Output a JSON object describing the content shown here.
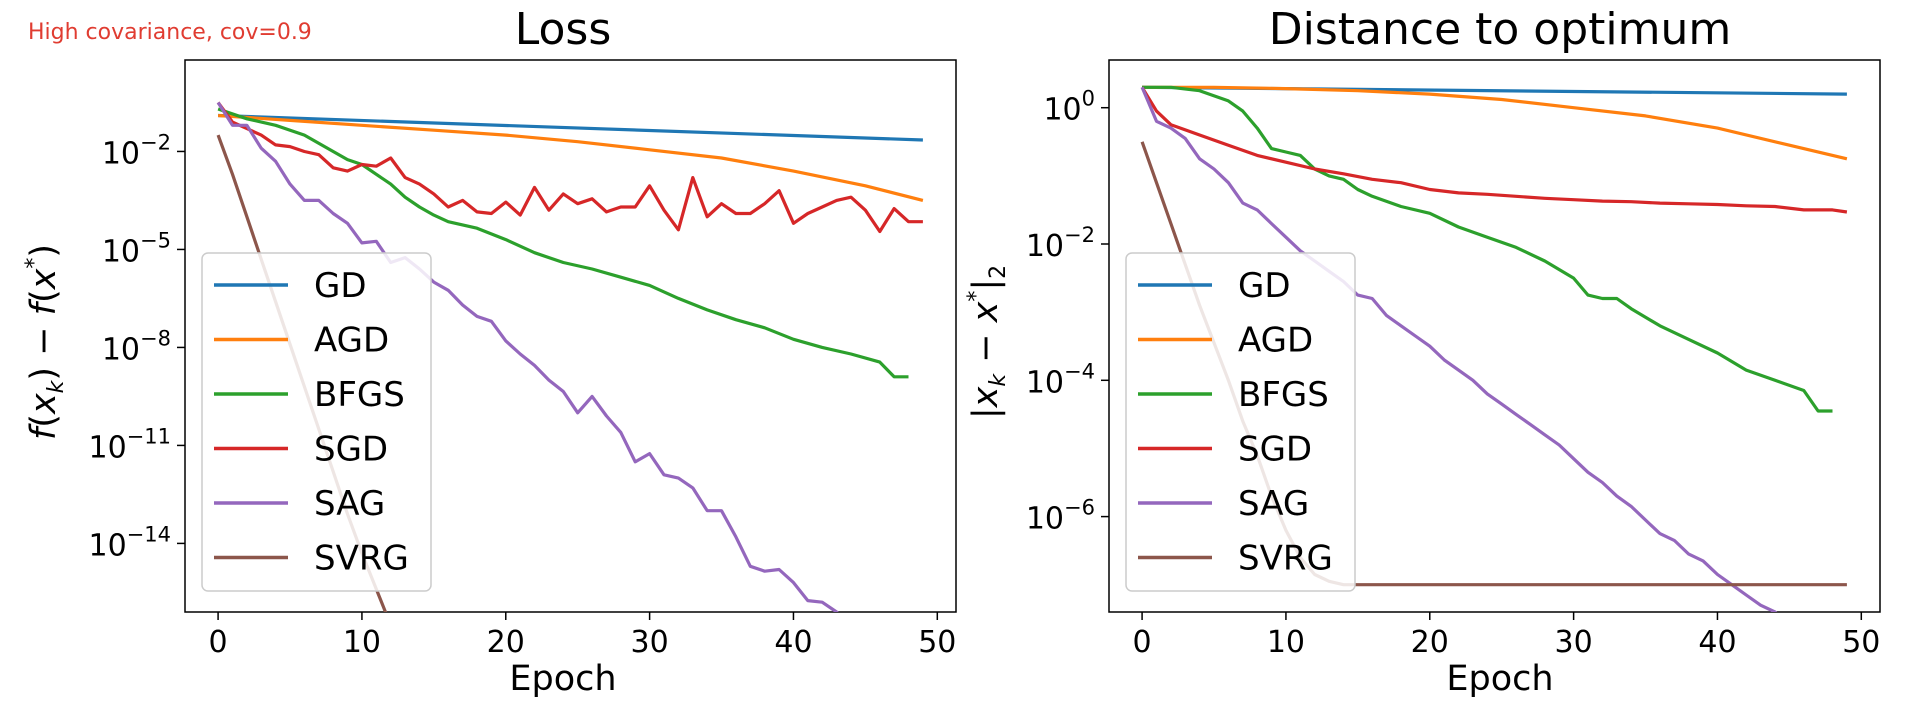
{
  "annotation": "High covariance, cov=0.9",
  "colors": {
    "GD": "#1f77b4",
    "AGD": "#ff7f0e",
    "BFGS": "#2ca02c",
    "SGD": "#d62728",
    "SAG": "#9467bd",
    "SVRG": "#8c564b",
    "annotation": "#e03c31"
  },
  "chart_data": [
    {
      "type": "line",
      "title": "Loss",
      "xlabel": "Epoch",
      "ylabel": "f(x_k) − f(x*)",
      "yscale": "log",
      "xlim": [
        -2.3,
        51.3
      ],
      "ylim_log10": [
        -16.1,
        0.8
      ],
      "xticks": [
        0,
        10,
        20,
        30,
        40,
        50
      ],
      "yticks_exp": [
        -2,
        -5,
        -8,
        -11,
        -14
      ],
      "legend": [
        "GD",
        "AGD",
        "BFGS",
        "SGD",
        "SAG",
        "SVRG"
      ],
      "legend_loc": "lower-left",
      "grid": false,
      "series": [
        {
          "name": "GD",
          "x": [
            0,
            49
          ],
          "log10y": [
            -0.9,
            -1.65
          ]
        },
        {
          "name": "AGD",
          "x": [
            0,
            5,
            10,
            15,
            20,
            25,
            30,
            35,
            40,
            45,
            49
          ],
          "log10y": [
            -0.9,
            -1.05,
            -1.2,
            -1.35,
            -1.5,
            -1.7,
            -1.95,
            -2.2,
            -2.6,
            -3.05,
            -3.5
          ]
        },
        {
          "name": "BFGS",
          "x": [
            0,
            2,
            4,
            6,
            8,
            9,
            10,
            11,
            12,
            13,
            14,
            15,
            16,
            18,
            20,
            22,
            24,
            26,
            28,
            30,
            32,
            34,
            36,
            38,
            40,
            42,
            44,
            46,
            47,
            48
          ],
          "log10y": [
            -0.7,
            -1.0,
            -1.2,
            -1.5,
            -2.0,
            -2.25,
            -2.4,
            -2.7,
            -3.0,
            -3.4,
            -3.7,
            -3.95,
            -4.15,
            -4.35,
            -4.7,
            -5.1,
            -5.4,
            -5.6,
            -5.85,
            -6.1,
            -6.5,
            -6.85,
            -7.15,
            -7.4,
            -7.75,
            -8.0,
            -8.2,
            -8.45,
            -8.9,
            -8.9
          ]
        },
        {
          "name": "SGD",
          "x": [
            0,
            1,
            2,
            3,
            4,
            5,
            6,
            7,
            8,
            9,
            10,
            11,
            12,
            13,
            14,
            15,
            16,
            17,
            18,
            19,
            20,
            21,
            22,
            23,
            24,
            25,
            26,
            27,
            28,
            29,
            30,
            31,
            32,
            33,
            34,
            35,
            36,
            37,
            38,
            39,
            40,
            41,
            42,
            43,
            44,
            45,
            46,
            47,
            48,
            49
          ],
          "log10y": [
            -0.5,
            -1.1,
            -1.3,
            -1.5,
            -1.8,
            -1.85,
            -2.0,
            -2.1,
            -2.5,
            -2.6,
            -2.4,
            -2.45,
            -2.2,
            -2.8,
            -3.0,
            -3.3,
            -3.7,
            -3.5,
            -3.85,
            -3.9,
            -3.55,
            -3.95,
            -3.1,
            -3.8,
            -3.3,
            -3.6,
            -3.45,
            -3.85,
            -3.7,
            -3.7,
            -3.05,
            -3.8,
            -4.4,
            -2.8,
            -4.0,
            -3.6,
            -3.9,
            -3.9,
            -3.6,
            -3.2,
            -4.2,
            -3.9,
            -3.7,
            -3.5,
            -3.4,
            -3.8,
            -4.45,
            -3.75,
            -4.15,
            -4.15
          ]
        },
        {
          "name": "SAG",
          "x": [
            0,
            1,
            2,
            3,
            4,
            5,
            6,
            7,
            8,
            9,
            10,
            11,
            12,
            13,
            14,
            15,
            16,
            17,
            18,
            19,
            20,
            21,
            22,
            23,
            24,
            25,
            26,
            27,
            28,
            29,
            30,
            31,
            32,
            33,
            34,
            35,
            36,
            37,
            38,
            39,
            40,
            41,
            42,
            43,
            44,
            45,
            46,
            47,
            48,
            49
          ],
          "log10y": [
            -0.5,
            -1.2,
            -1.2,
            -1.9,
            -2.3,
            -3.0,
            -3.5,
            -3.5,
            -3.9,
            -4.2,
            -4.8,
            -4.75,
            -5.4,
            -5.25,
            -5.6,
            -6.0,
            -6.25,
            -6.7,
            -7.05,
            -7.2,
            -7.8,
            -8.2,
            -8.55,
            -9.0,
            -9.35,
            -10.0,
            -9.5,
            -10.1,
            -10.6,
            -11.5,
            -11.25,
            -11.9,
            -12.0,
            -12.3,
            -13.0,
            -13.0,
            -13.8,
            -14.7,
            -14.85,
            -14.8,
            -15.2,
            -15.75,
            -15.8,
            -16.1,
            -16.6,
            -16.45,
            -17.25,
            -17.35,
            -17.65,
            -18.0
          ]
        },
        {
          "name": "SVRG",
          "x": [
            0,
            1,
            2,
            3,
            4,
            5,
            6,
            7,
            8,
            9,
            10,
            11,
            12
          ],
          "log10y": [
            -1.5,
            -2.7,
            -4.0,
            -5.3,
            -6.6,
            -7.9,
            -9.2,
            -10.5,
            -11.8,
            -13.1,
            -14.3,
            -15.4,
            -16.5
          ]
        }
      ]
    },
    {
      "type": "line",
      "title": "Distance to optimum",
      "xlabel": "Epoch",
      "ylabel": "|x_k − x*|_2",
      "yscale": "log",
      "xlim": [
        -2.3,
        51.3
      ],
      "ylim_log10": [
        -7.4,
        0.7
      ],
      "xticks": [
        0,
        10,
        20,
        30,
        40,
        50
      ],
      "yticks_exp": [
        0,
        -2,
        -4,
        -6
      ],
      "legend": [
        "GD",
        "AGD",
        "BFGS",
        "SGD",
        "SAG",
        "SVRG"
      ],
      "legend_loc": "lower-left",
      "grid": false,
      "series": [
        {
          "name": "GD",
          "x": [
            0,
            49
          ],
          "log10y": [
            0.3,
            0.2
          ]
        },
        {
          "name": "AGD",
          "x": [
            0,
            5,
            10,
            15,
            20,
            25,
            30,
            35,
            40,
            45,
            49
          ],
          "log10y": [
            0.3,
            0.3,
            0.28,
            0.25,
            0.2,
            0.12,
            0.0,
            -0.12,
            -0.3,
            -0.55,
            -0.75
          ]
        },
        {
          "name": "BFGS",
          "x": [
            0,
            2,
            4,
            6,
            7,
            8,
            9,
            10,
            11,
            12,
            13,
            14,
            15,
            16,
            18,
            20,
            22,
            24,
            26,
            28,
            30,
            31,
            32,
            33,
            34,
            36,
            38,
            40,
            42,
            44,
            46,
            47,
            48
          ],
          "log10y": [
            0.3,
            0.3,
            0.25,
            0.1,
            -0.05,
            -0.3,
            -0.6,
            -0.65,
            -0.7,
            -0.9,
            -1.0,
            -1.05,
            -1.2,
            -1.3,
            -1.45,
            -1.55,
            -1.75,
            -1.9,
            -2.05,
            -2.25,
            -2.5,
            -2.75,
            -2.8,
            -2.8,
            -2.95,
            -3.2,
            -3.4,
            -3.6,
            -3.85,
            -4.0,
            -4.15,
            -4.45,
            -4.45
          ]
        },
        {
          "name": "SGD",
          "x": [
            0,
            1,
            2,
            4,
            6,
            8,
            10,
            12,
            14,
            16,
            18,
            20,
            22,
            24,
            26,
            28,
            30,
            32,
            34,
            36,
            38,
            40,
            42,
            44,
            46,
            48,
            49
          ],
          "log10y": [
            0.3,
            -0.05,
            -0.25,
            -0.4,
            -0.55,
            -0.7,
            -0.8,
            -0.9,
            -0.97,
            -1.05,
            -1.1,
            -1.2,
            -1.25,
            -1.27,
            -1.3,
            -1.33,
            -1.35,
            -1.37,
            -1.38,
            -1.4,
            -1.41,
            -1.42,
            -1.44,
            -1.45,
            -1.5,
            -1.5,
            -1.53
          ]
        },
        {
          "name": "SAG",
          "x": [
            0,
            1,
            2,
            3,
            4,
            5,
            6,
            7,
            8,
            9,
            10,
            11,
            12,
            13,
            14,
            15,
            16,
            17,
            18,
            19,
            20,
            21,
            22,
            23,
            24,
            25,
            26,
            27,
            28,
            29,
            30,
            31,
            32,
            33,
            34,
            35,
            36,
            37,
            38,
            39,
            40,
            41,
            42,
            43,
            44,
            45,
            46,
            47,
            48,
            49
          ],
          "log10y": [
            0.3,
            -0.2,
            -0.3,
            -0.45,
            -0.75,
            -0.9,
            -1.1,
            -1.4,
            -1.5,
            -1.7,
            -1.9,
            -2.1,
            -2.25,
            -2.4,
            -2.55,
            -2.75,
            -2.8,
            -3.05,
            -3.2,
            -3.35,
            -3.5,
            -3.7,
            -3.85,
            -4.0,
            -4.2,
            -4.35,
            -4.5,
            -4.65,
            -4.8,
            -4.95,
            -5.15,
            -5.35,
            -5.5,
            -5.7,
            -5.85,
            -6.05,
            -6.25,
            -6.35,
            -6.55,
            -6.65,
            -6.85,
            -7.0,
            -7.15,
            -7.3,
            -7.4,
            -7.6,
            -7.75,
            -7.9,
            -8.0,
            -8.1
          ]
        },
        {
          "name": "SVRG",
          "x": [
            0,
            1,
            2,
            3,
            4,
            5,
            6,
            7,
            8,
            9,
            10,
            11,
            12,
            13,
            14,
            15,
            16,
            20,
            30,
            40,
            49
          ],
          "log10y": [
            -0.5,
            -1.1,
            -1.7,
            -2.3,
            -2.9,
            -3.45,
            -4.0,
            -4.6,
            -5.1,
            -5.7,
            -6.2,
            -6.6,
            -6.85,
            -6.95,
            -7.0,
            -7.0,
            -7.0,
            -7.0,
            -7.0,
            -7.0,
            -7.0
          ]
        }
      ]
    }
  ]
}
